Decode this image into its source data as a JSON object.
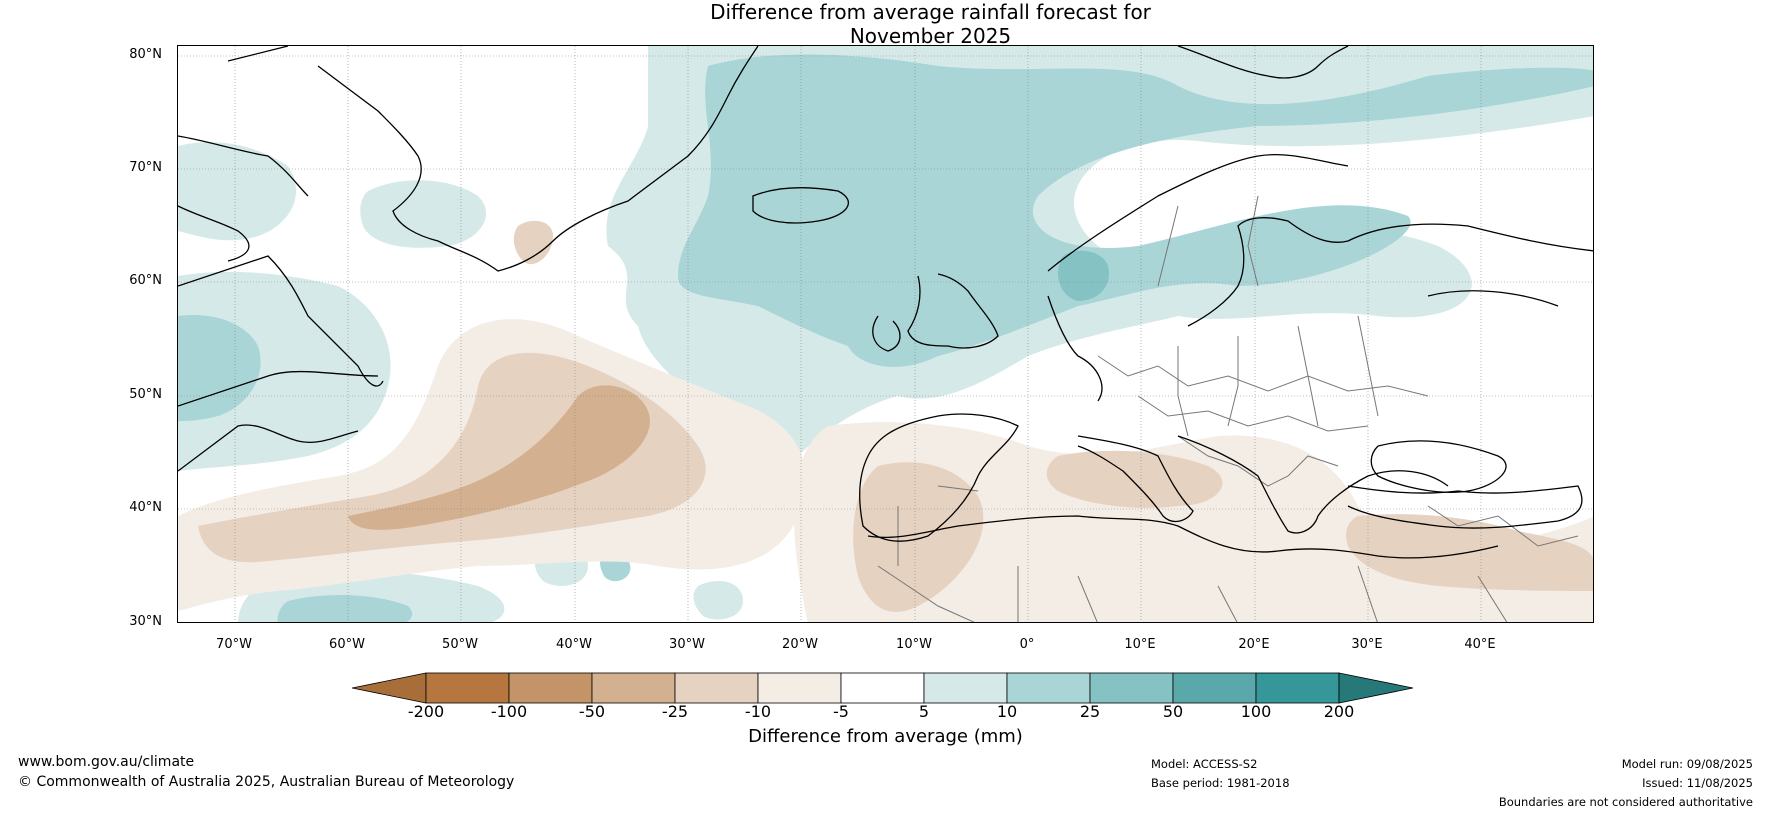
{
  "title_line1": "Difference from average rainfall forecast for",
  "title_line2": "November 2025",
  "lat_labels": [
    "80°N",
    "70°N",
    "60°N",
    "50°N",
    "40°N",
    "30°N"
  ],
  "lon_labels": [
    "70°W",
    "60°W",
    "50°W",
    "40°W",
    "30°W",
    "20°W",
    "10°W",
    "0°",
    "10°E",
    "20°E",
    "30°E",
    "40°E"
  ],
  "colorbar": {
    "ticks": [
      "-200",
      "-100",
      "-50",
      "-25",
      "-10",
      "-5",
      "5",
      "10",
      "25",
      "50",
      "100",
      "200"
    ],
    "colors": [
      "#a86e3a",
      "#b5773f",
      "#c29467",
      "#d3b08f",
      "#e6d2c0",
      "#f3ede6",
      "#ffffff",
      "#d5e9e9",
      "#a9d5d6",
      "#85c2c3",
      "#5aa8aa",
      "#35979a",
      "#277878"
    ],
    "label": "Difference from average (mm)"
  },
  "footer": {
    "website": "www.bom.gov.au/climate",
    "copyright": "© Commonwealth of Australia 2025, Australian Bureau of Meteorology",
    "model": "Model: ACCESS-S2",
    "base_period": "Base period: 1981-2018",
    "model_run": "Model run: 09/08/2025",
    "issued": "Issued: 11/08/2025",
    "disclaimer": "Boundaries are not considered authoritative"
  },
  "colors": {
    "wet_light": "#d5e9e9",
    "wet_mid": "#a9d5d6",
    "wet_strong": "#85c2c3",
    "dry_light": "#f3ede6",
    "dry_mid": "#e6d2c0",
    "dry_strong": "#d3b08f",
    "coast": "#000000",
    "border": "#777777",
    "grid": "#888888"
  }
}
